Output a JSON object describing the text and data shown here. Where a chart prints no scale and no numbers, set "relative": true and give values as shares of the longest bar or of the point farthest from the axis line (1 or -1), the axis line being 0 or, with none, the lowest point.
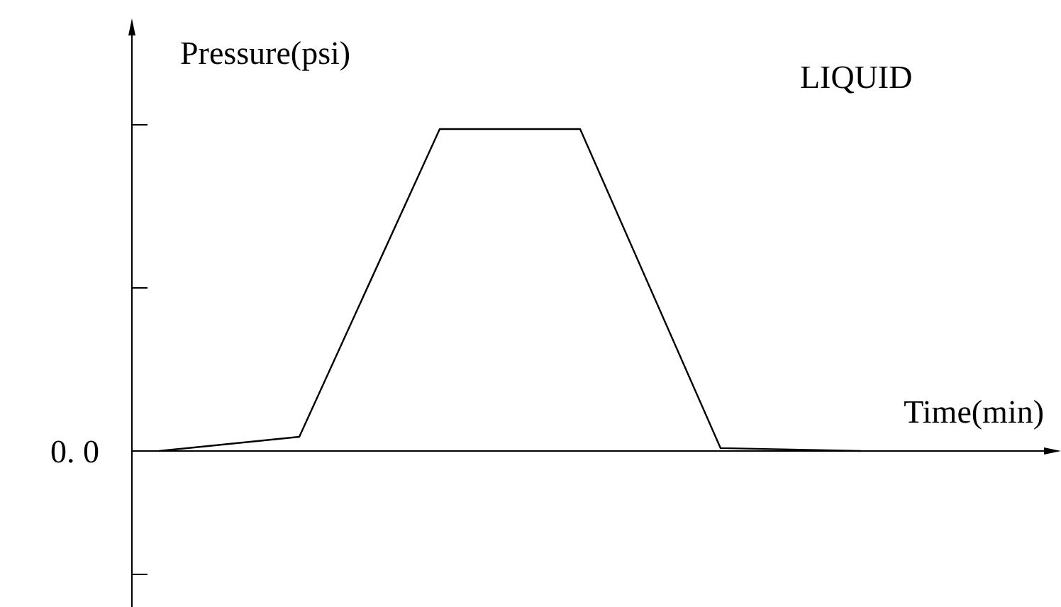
{
  "chart_data": {
    "type": "line",
    "title": "LIQUID",
    "xlabel": "Time(min)",
    "ylabel": "Pressure(psi)",
    "relative": true,
    "categories": [
      null,
      null,
      null,
      null,
      null,
      null
    ],
    "series": [
      {
        "color": "#000000",
        "values": [
          0,
          0.044,
          1,
          1,
          0.009,
          0
        ]
      }
    ],
    "annotations": [
      "0. 0"
    ],
    "marker": "none",
    "line_style": "solid"
  }
}
